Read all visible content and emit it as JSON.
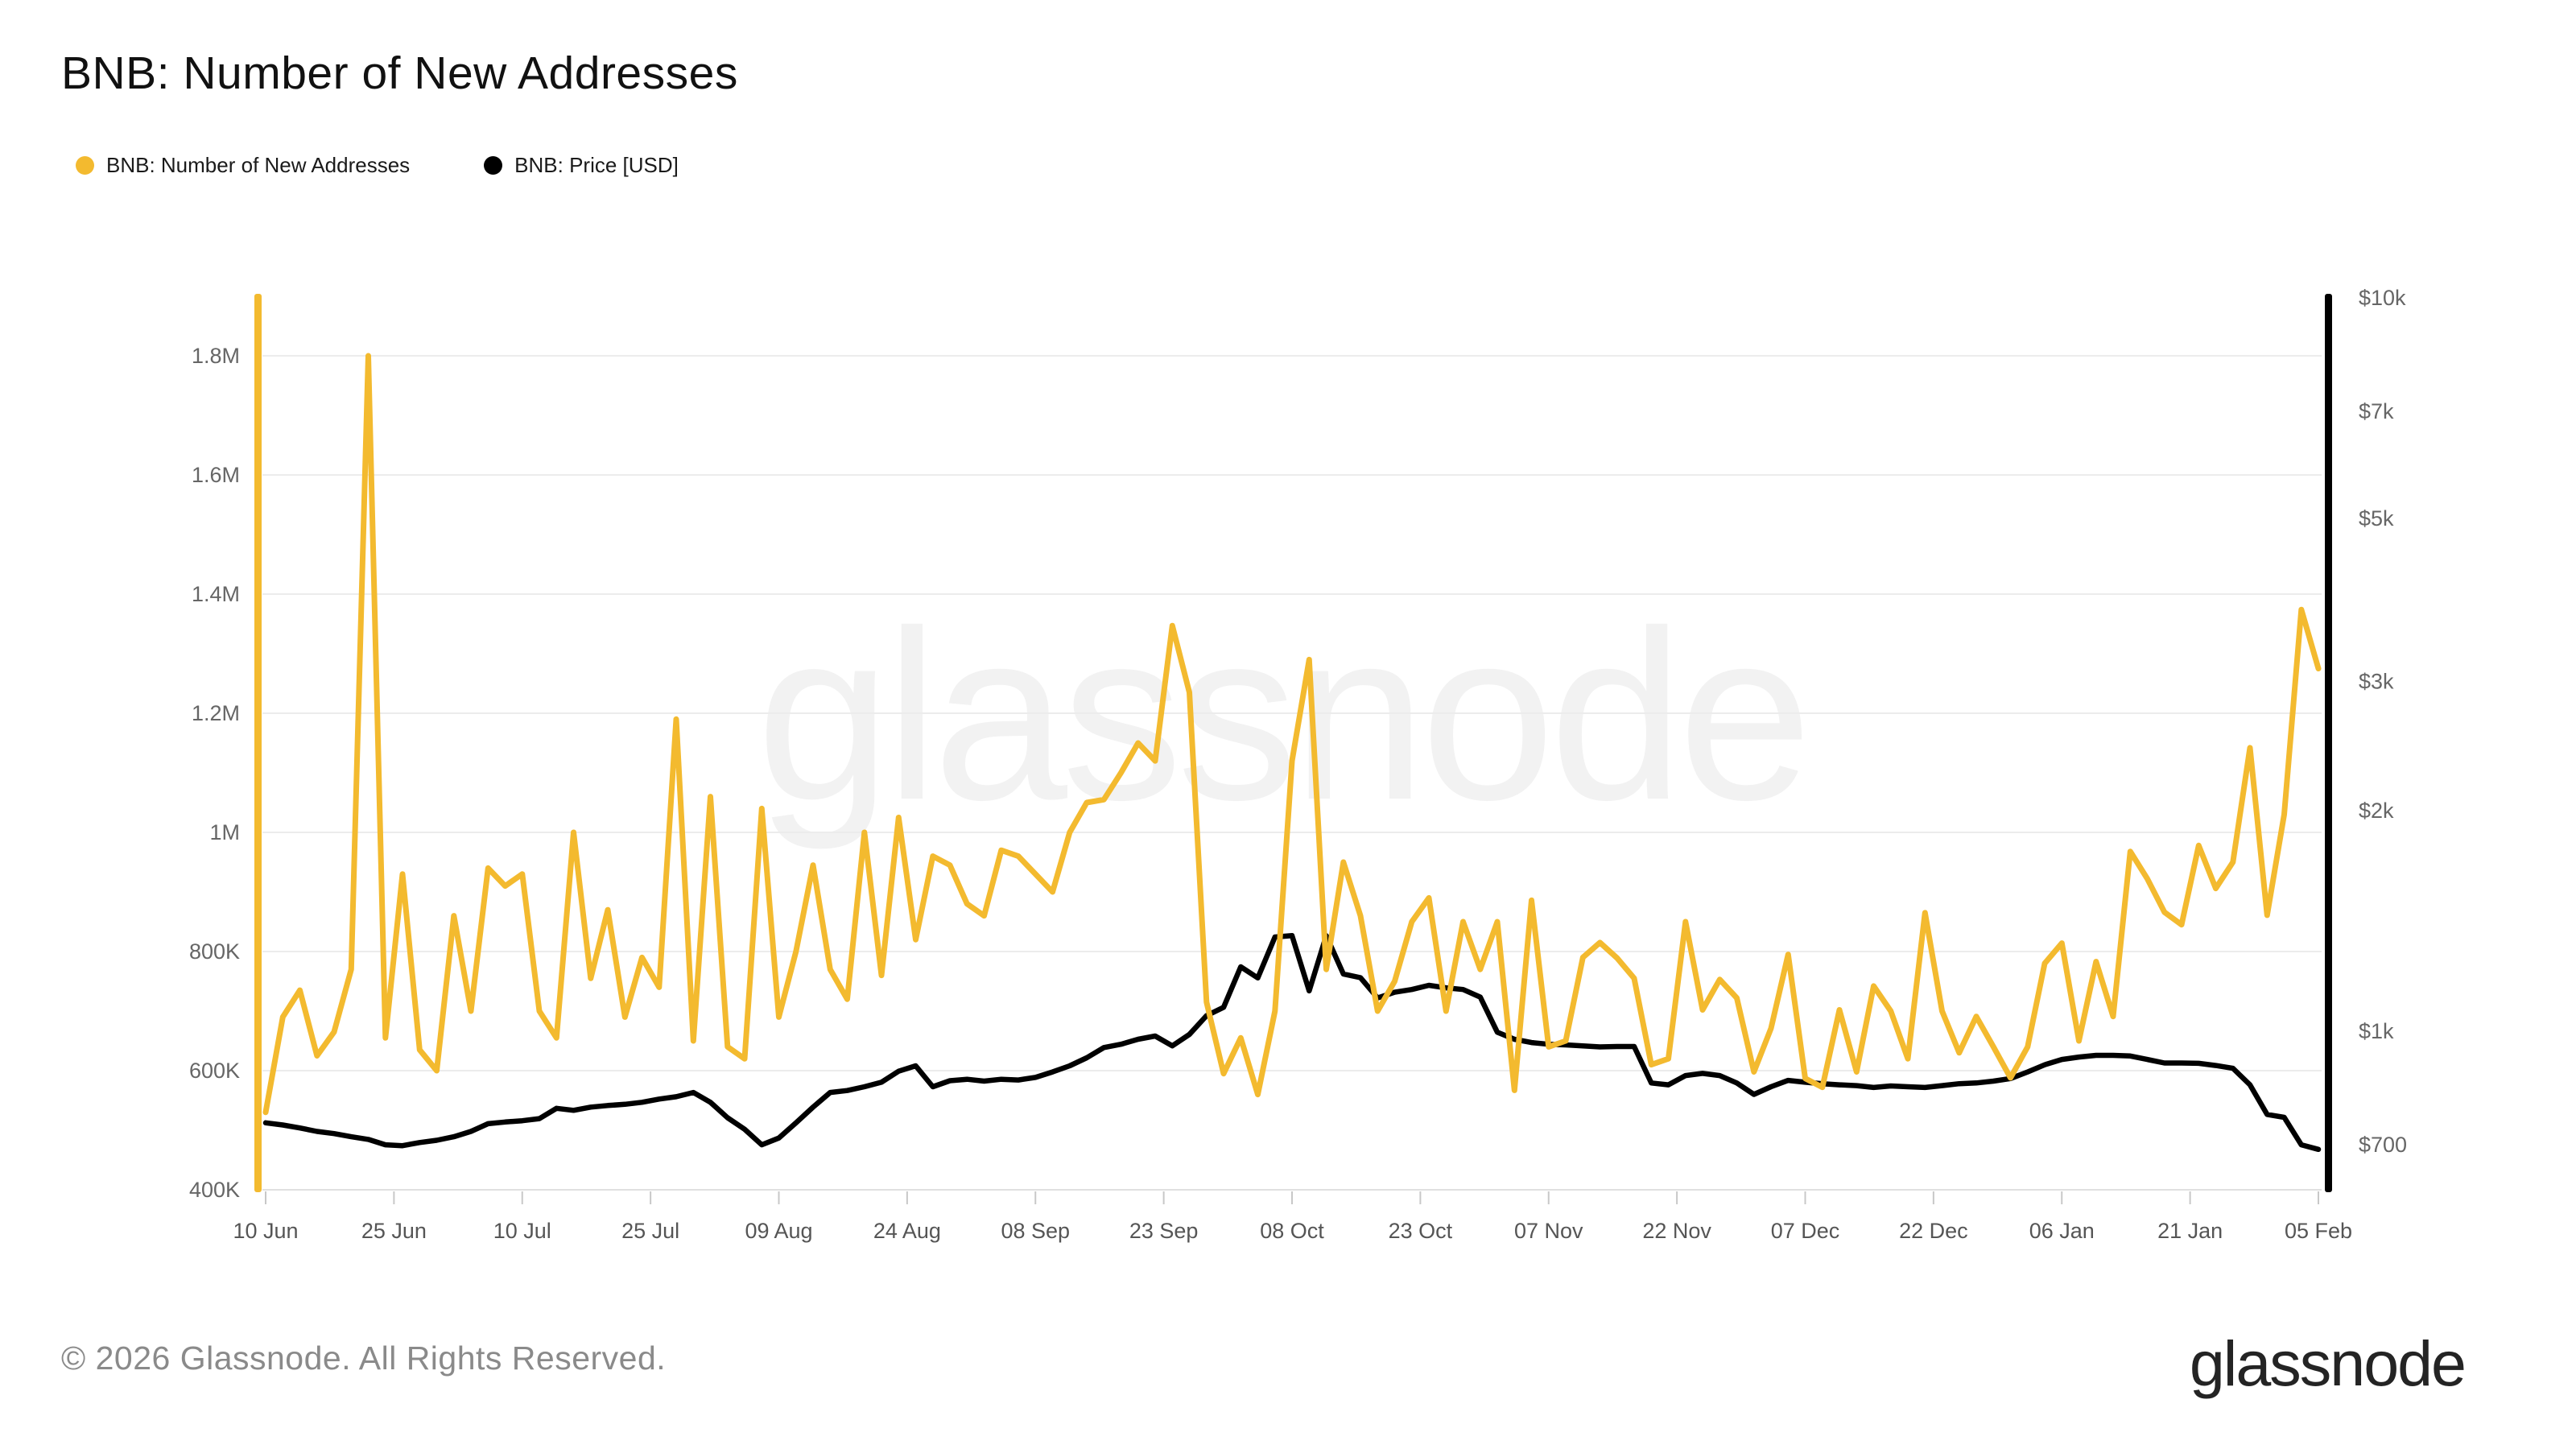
{
  "title": "BNB: Number of New Addresses",
  "legend": [
    {
      "label": "BNB: Number of New Addresses",
      "color": "#F3BA2F"
    },
    {
      "label": "BNB: Price [USD]",
      "color": "#000000"
    }
  ],
  "watermark": "glassnode",
  "footer": {
    "copyright": "© 2026 Glassnode. All Rights Reserved.",
    "logo_text": "glassnode"
  },
  "chart_data": {
    "type": "line",
    "title": "BNB: Number of New Addresses",
    "sample_interval_days": 2,
    "x_total_days": 240,
    "x_tick_labels": [
      "10 Jun",
      "25 Jun",
      "10 Jul",
      "25 Jul",
      "09 Aug",
      "24 Aug",
      "08 Sep",
      "23 Sep",
      "08 Oct",
      "23 Oct",
      "07 Nov",
      "22 Nov",
      "07 Dec",
      "22 Dec",
      "06 Jan",
      "21 Jan",
      "05 Feb"
    ],
    "grid": "horizontal-only",
    "legend_position": "top-left",
    "left_axis": {
      "label": "BNB: Number of New Addresses",
      "scale": "linear",
      "color": "#F3BA2F",
      "tick_labels": [
        "1.8M",
        "1.6M",
        "1.4M",
        "1.2M",
        "1M",
        "800K",
        "600K",
        "400K"
      ],
      "tick_values_thousands": [
        1800,
        1600,
        1400,
        1200,
        1000,
        800,
        600,
        400
      ],
      "range_thousands": [
        400,
        1900
      ]
    },
    "right_axis": {
      "label": "BNB: Price [USD]",
      "scale": "log",
      "color": "#000000",
      "tick_labels": [
        "$10k",
        "$7k",
        "$5k",
        "$3k",
        "$2k",
        "$1k",
        "$700"
      ],
      "tick_values_usd": [
        10000,
        7000,
        5000,
        3000,
        2000,
        1000,
        700
      ],
      "range_usd": [
        610,
        10050
      ]
    },
    "series": [
      {
        "name": "BNB: Number of New Addresses",
        "axis": "left",
        "color": "#F3BA2F",
        "unit": "thousand addresses",
        "values": [
          530,
          690,
          735,
          625,
          665,
          770,
          1800,
          655,
          930,
          635,
          600,
          860,
          700,
          940,
          910,
          930,
          700,
          655,
          1000,
          755,
          870,
          690,
          790,
          740,
          1190,
          650,
          1060,
          640,
          620,
          1040,
          690,
          800,
          945,
          770,
          720,
          1000,
          760,
          1025,
          820,
          960,
          945,
          880,
          860,
          970,
          960,
          930,
          900,
          1000,
          1050,
          1055,
          1100,
          1150,
          1120,
          1347,
          1235,
          715,
          595,
          655,
          560,
          700,
          1120,
          1290,
          770,
          950,
          860,
          700,
          750,
          850,
          890,
          700,
          850,
          770,
          850,
          567,
          886,
          640,
          650,
          790,
          815,
          789,
          755,
          610,
          620,
          850,
          702,
          753,
          722,
          598,
          671,
          795,
          587,
          572,
          702,
          598,
          742,
          700,
          620,
          865,
          700,
          630,
          691,
          640,
          588,
          640,
          780,
          814,
          650,
          783,
          691,
          968,
          922,
          866,
          845,
          978,
          906,
          950,
          1142,
          861,
          1030,
          1374,
          1275
        ]
      },
      {
        "name": "BNB: Price [USD]",
        "axis": "right",
        "color": "#000000",
        "unit": "USD",
        "values": [
          750,
          745,
          738,
          730,
          725,
          718,
          712,
          700,
          698,
          705,
          710,
          718,
          730,
          748,
          752,
          755,
          760,
          785,
          780,
          788,
          792,
          795,
          800,
          808,
          814,
          825,
          800,
          762,
          735,
          700,
          715,
          750,
          788,
          825,
          830,
          840,
          852,
          882,
          897,
          840,
          856,
          860,
          855,
          860,
          858,
          865,
          880,
          897,
          920,
          950,
          960,
          975,
          985,
          955,
          990,
          1050,
          1078,
          1224,
          1182,
          1344,
          1350,
          1135,
          1350,
          1197,
          1183,
          1110,
          1130,
          1140,
          1155,
          1146,
          1140,
          1113,
          997,
          975,
          965,
          960,
          958,
          955,
          952,
          953,
          953,
          850,
          845,
          870,
          876,
          870,
          850,
          820,
          840,
          857,
          852,
          848,
          845,
          843,
          838,
          842,
          840,
          838,
          843,
          848,
          850,
          855,
          862,
          880,
          900,
          915,
          922,
          927,
          927,
          925,
          915,
          905,
          905,
          904,
          898,
          890,
          845,
          770,
          763,
          700,
          690
        ]
      }
    ]
  },
  "colors": {
    "accent_yellow": "#F3BA2F",
    "series_black": "#000000",
    "gridline": "#ececec",
    "baseline": "#e0e0e0",
    "tick_stub": "#c8c8c8",
    "axis_text": "#666666",
    "date_text": "#555555",
    "footer_text": "#8a8a8a",
    "logo_text": "#242424",
    "background": "#ffffff"
  }
}
